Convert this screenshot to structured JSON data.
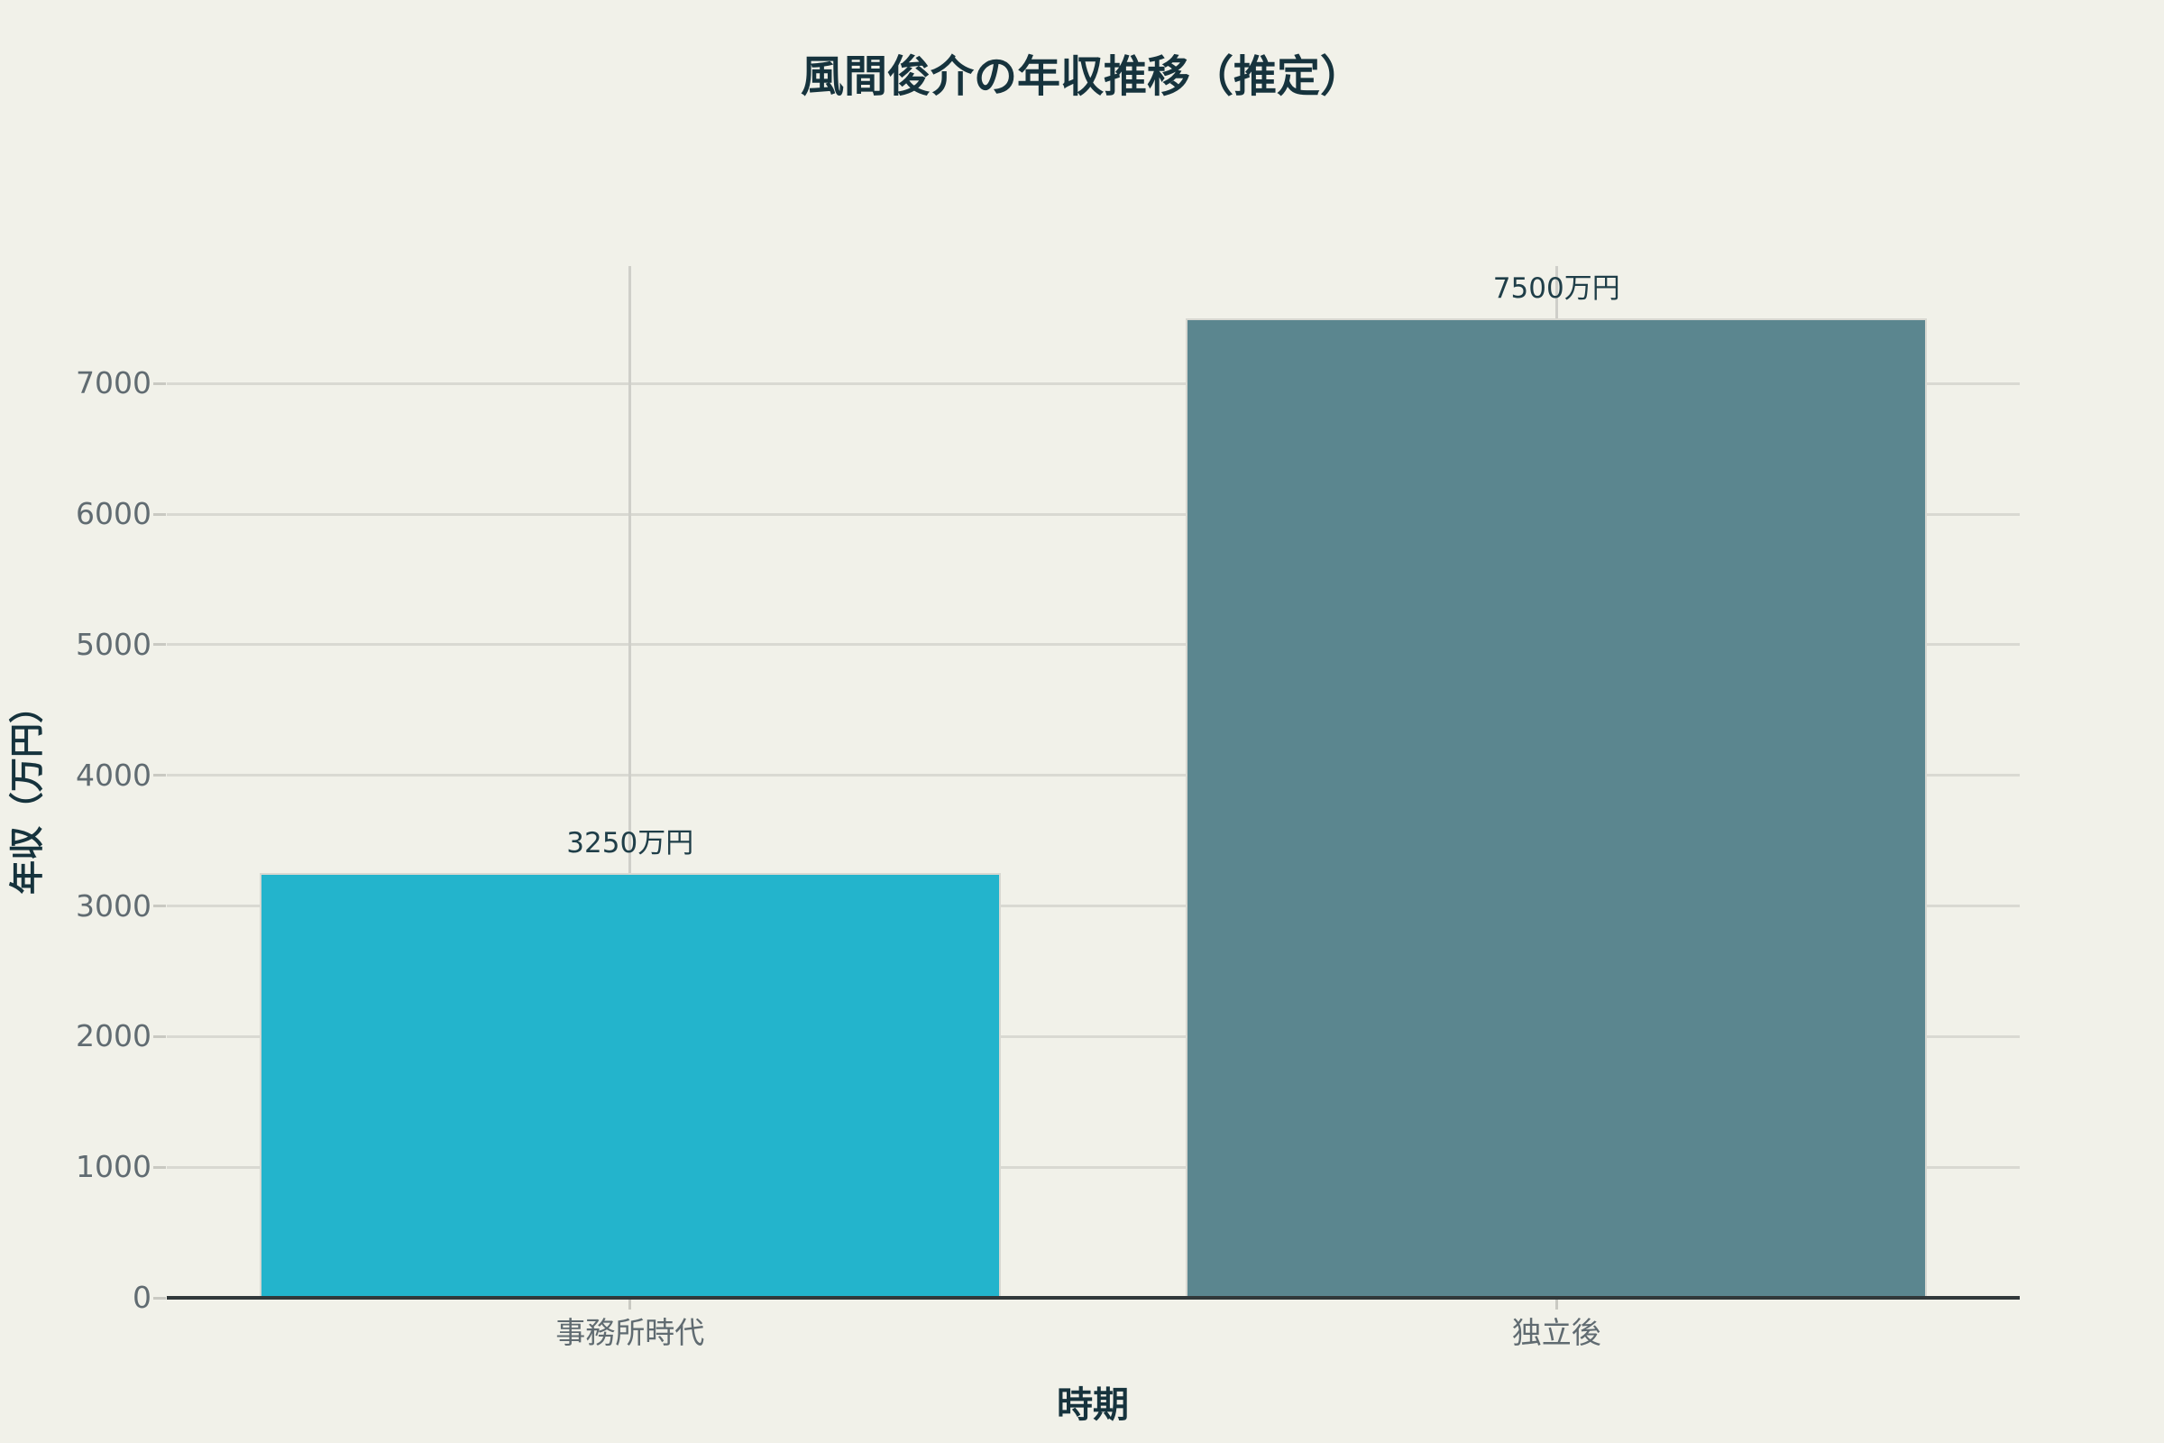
{
  "chart_data": {
    "type": "bar",
    "title": "風間俊介の年収推移（推定）",
    "xlabel": "時期",
    "ylabel": "年収（万円）",
    "categories": [
      "事務所時代",
      "独立後"
    ],
    "values": [
      3250,
      7500
    ],
    "data_labels": [
      "3250万円",
      "7500万円"
    ],
    "bar_colors": [
      "#23b4cc",
      "#5b868f"
    ],
    "yticks": [
      0,
      1000,
      2000,
      3000,
      4000,
      5000,
      6000,
      7000
    ],
    "ylim": [
      0,
      7900
    ],
    "grid": true,
    "legend": false
  },
  "colors": {
    "background": "#f1f1e9",
    "title_text": "#16333d",
    "axis_title_text": "#16333d",
    "tick_label_text": "#606b71",
    "value_label_text": "#1f3e48",
    "bar_agency_era": "#23b4cc",
    "bar_after_independence": "#5b868f",
    "gridline": "#d9d9d2",
    "axis_line": "#31383a",
    "tick_mark": "#c9c9c2",
    "bar_border": "#d8d8d1"
  }
}
